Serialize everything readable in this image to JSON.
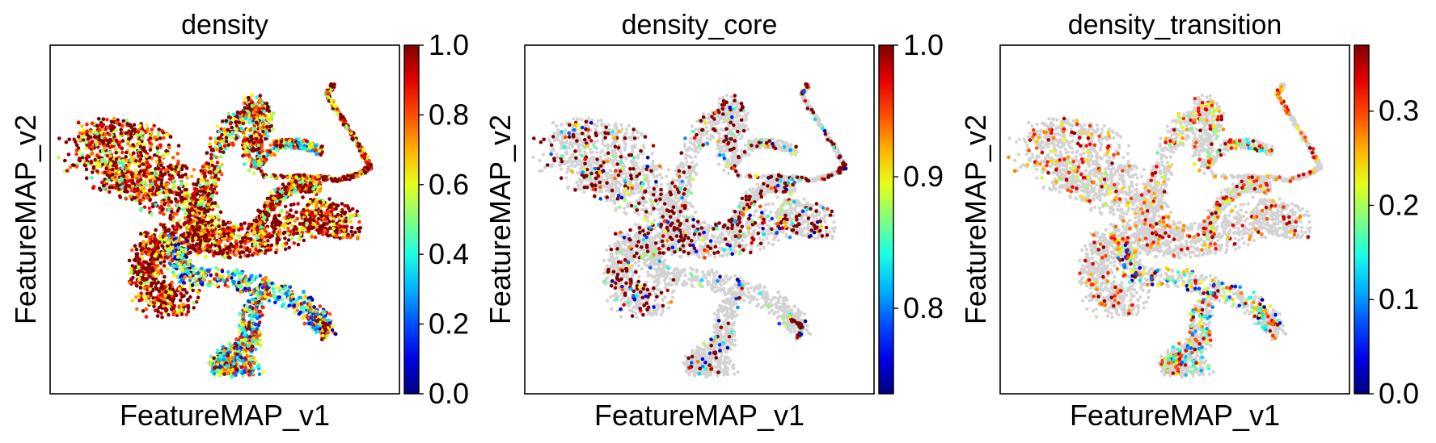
{
  "chart_data": [
    {
      "type": "scatter",
      "title": "density",
      "xlabel": "FeatureMAP_v1",
      "ylabel": "FeatureMAP_v2",
      "colormap": "jet",
      "background_point_color": "#d3d3d3",
      "grid": false,
      "colorbar": {
        "range": [
          0.0,
          1.0
        ],
        "ticks": [
          0.0,
          0.2,
          0.4,
          0.6,
          0.8,
          1.0
        ],
        "tick_labels": [
          "0.0",
          "0.2",
          "0.4",
          "0.6",
          "0.8",
          "1.0"
        ]
      }
    },
    {
      "type": "scatter",
      "title": "density_core",
      "xlabel": "FeatureMAP_v1",
      "ylabel": "FeatureMAP_v2",
      "colormap": "jet",
      "background_point_color": "#d3d3d3",
      "grid": false,
      "colorbar": {
        "range": [
          0.735,
          1.0
        ],
        "ticks": [
          0.8,
          0.9,
          1.0
        ],
        "tick_labels": [
          "0.8",
          "0.9",
          "1.0"
        ]
      }
    },
    {
      "type": "scatter",
      "title": "density_transition",
      "xlabel": "FeatureMAP_v1",
      "ylabel": "FeatureMAP_v2",
      "colormap": "jet",
      "background_point_color": "#d3d3d3",
      "grid": false,
      "colorbar": {
        "range": [
          0.0,
          0.37
        ],
        "ticks": [
          0.0,
          0.1,
          0.2,
          0.3
        ],
        "tick_labels": [
          "0.0",
          "0.1",
          "0.2",
          "0.3"
        ]
      }
    }
  ]
}
